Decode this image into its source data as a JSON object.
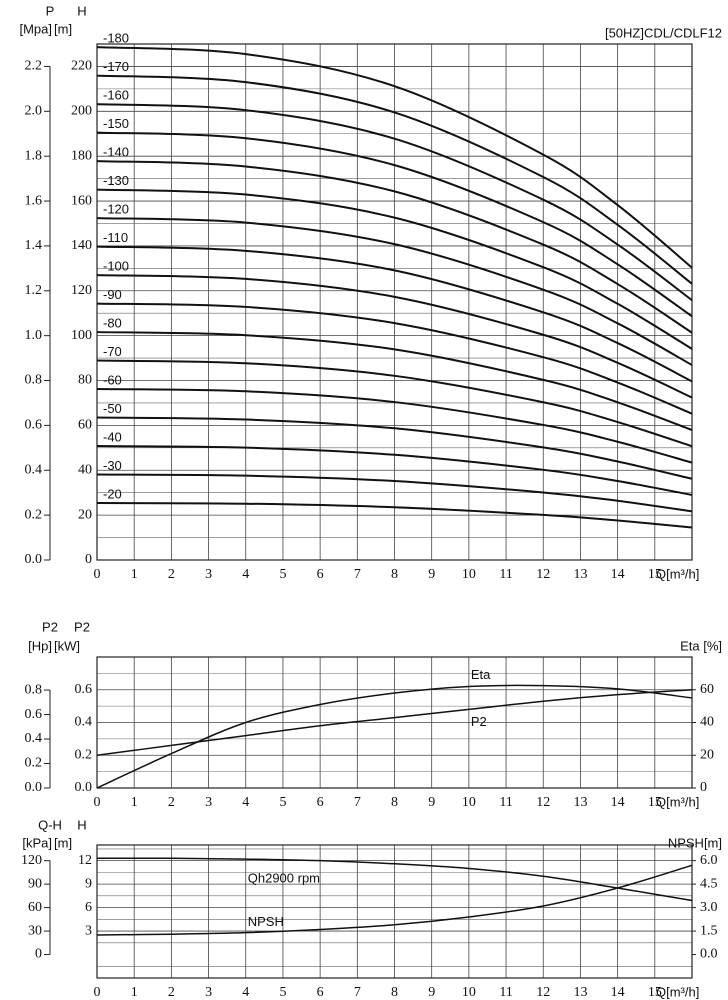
{
  "chart_data": [
    {
      "type": "line",
      "title": "[50HZ]CDL/CDLF12",
      "y_label": "H",
      "y_unit": "[m]",
      "y3_label": "P",
      "y3_unit": "[Mpa]",
      "x_label": "Q[m³/h]",
      "x": [
        0,
        4,
        8,
        12,
        14,
        16
      ],
      "xlim": [
        0,
        16
      ],
      "xticks": [
        0,
        1,
        2,
        3,
        4,
        5,
        6,
        7,
        8,
        9,
        10,
        11,
        12,
        13,
        14,
        15
      ],
      "ylim": [
        0,
        230
      ],
      "yticks": [
        0,
        20,
        40,
        60,
        80,
        100,
        120,
        140,
        160,
        180,
        200,
        220
      ],
      "y3lim": [
        0,
        2.3
      ],
      "y3ticks": [
        {
          "value": 0,
          "label": "0.0"
        },
        0.2,
        0.4,
        0.6,
        0.8,
        {
          "value": 1,
          "label": "1.0"
        },
        1.2,
        1.4,
        1.6,
        1.8,
        {
          "value": 2,
          "label": "2.0"
        },
        2.2
      ],
      "grid": true,
      "minor_grid": true,
      "series": [
        {
          "name": "-20",
          "color": "#111",
          "values": [
            25.4,
            25.1,
            23.5,
            20.1,
            17.6,
            14.5
          ]
        },
        {
          "name": "-30",
          "color": "#111",
          "values": [
            38.1,
            37.6,
            35.2,
            30.1,
            26.4,
            21.7
          ]
        },
        {
          "name": "-40",
          "color": "#111",
          "values": [
            50.8,
            50.1,
            46.9,
            40.2,
            35.2,
            29.0
          ]
        },
        {
          "name": "-50",
          "color": "#111",
          "values": [
            63.5,
            62.6,
            58.7,
            50.2,
            43.9,
            36.2
          ]
        },
        {
          "name": "-60",
          "color": "#111",
          "values": [
            76.2,
            75.2,
            70.4,
            60.2,
            52.7,
            43.4
          ]
        },
        {
          "name": "-70",
          "color": "#111",
          "values": [
            88.9,
            87.7,
            82.1,
            70.3,
            61.5,
            50.7
          ]
        },
        {
          "name": "-80",
          "color": "#111",
          "values": [
            101.6,
            100.2,
            93.9,
            80.3,
            70.3,
            57.9
          ]
        },
        {
          "name": "-90",
          "color": "#111",
          "values": [
            114.3,
            112.8,
            105.6,
            90.4,
            79.1,
            65.2
          ]
        },
        {
          "name": "-100",
          "color": "#111",
          "values": [
            127,
            125.3,
            117.3,
            100.4,
            87.9,
            72.4
          ]
        },
        {
          "name": "-110",
          "color": "#111",
          "values": [
            139.7,
            137.8,
            129.1,
            110.4,
            96.7,
            79.6
          ]
        },
        {
          "name": "-120",
          "color": "#111",
          "values": [
            152.4,
            150.4,
            140.8,
            120.5,
            105.5,
            86.9
          ]
        },
        {
          "name": "-130",
          "color": "#111",
          "values": [
            165.1,
            162.9,
            152.6,
            130.5,
            114.2,
            94.1
          ]
        },
        {
          "name": "-140",
          "color": "#111",
          "values": [
            177.8,
            175.4,
            164.3,
            140.6,
            123.0,
            101.3
          ]
        },
        {
          "name": "-150",
          "color": "#111",
          "values": [
            190.5,
            188.0,
            176.0,
            150.6,
            131.8,
            108.6
          ]
        },
        {
          "name": "-160",
          "color": "#111",
          "values": [
            203.2,
            200.5,
            187.8,
            160.6,
            140.6,
            115.8
          ]
        },
        {
          "name": "-170",
          "color": "#111",
          "values": [
            215.9,
            213.0,
            199.5,
            170.7,
            149.4,
            123.1
          ]
        },
        {
          "name": "-180",
          "color": "#111",
          "values": [
            228.6,
            225.5,
            211.2,
            180.7,
            158.2,
            130.3
          ]
        }
      ]
    },
    {
      "type": "line",
      "y_label": "P2",
      "y_unit": "[kW]",
      "y3_label": "P2",
      "y3_unit": "[Hp]",
      "y2_label": "Eta [%]",
      "x_label": "Q[m³/h]",
      "x": [
        0,
        2,
        4,
        6,
        8,
        10,
        12,
        14,
        16
      ],
      "xlim": [
        0,
        16
      ],
      "xticks": [
        0,
        1,
        2,
        3,
        4,
        5,
        6,
        7,
        8,
        9,
        10,
        11,
        12,
        13,
        14,
        15
      ],
      "ylim": [
        0,
        0.8
      ],
      "yticks": [
        {
          "value": 0,
          "label": "0.0"
        },
        0.2,
        0.4,
        0.6
      ],
      "y3lim": [
        0,
        1.07
      ],
      "y3ticks": [
        {
          "value": 0,
          "label": "0.0"
        },
        0.2,
        0.4,
        0.6,
        0.8
      ],
      "y2lim": [
        0,
        80
      ],
      "y2ticks": [
        0,
        20,
        40,
        60
      ],
      "grid": true,
      "minor_grid": true,
      "series": [
        {
          "name": "Eta",
          "color": "#111",
          "axis": "y2",
          "values": [
            0,
            21,
            40,
            51,
            58,
            62,
            62.5,
            60.5,
            55
          ]
        },
        {
          "name": "P2",
          "color": "#111",
          "values": [
            0.2,
            0.26,
            0.32,
            0.38,
            0.43,
            0.48,
            0.53,
            0.57,
            0.6
          ]
        }
      ]
    },
    {
      "type": "line",
      "y_label": "H",
      "y_unit": "[m]",
      "y3_label": "Q-H",
      "y3_unit": "[kPa]",
      "y2_label": "NPSH[m]",
      "x_label": "Q[m³/h]",
      "x": [
        0,
        2,
        4,
        6,
        8,
        10,
        12,
        14,
        16
      ],
      "xlim": [
        0,
        16
      ],
      "xticks": [
        0,
        1,
        2,
        3,
        4,
        5,
        6,
        7,
        8,
        9,
        10,
        11,
        12,
        13,
        14,
        15
      ],
      "ylim": [
        -3,
        14
      ],
      "yticks": [
        3,
        6,
        9,
        12
      ],
      "y3lim": [
        -30,
        140
      ],
      "y3ticks": [
        0,
        30,
        60,
        90,
        120
      ],
      "y2lim": [
        -1.5,
        7
      ],
      "y2ticks": [
        {
          "value": 0,
          "label": "0.0"
        },
        1.5,
        {
          "value": 3,
          "label": "3.0"
        },
        4.5,
        {
          "value": 6,
          "label": "6.0"
        }
      ],
      "grid": true,
      "minor_grid": true,
      "series": [
        {
          "name": "Qh2900 rpm",
          "color": "#111",
          "values": [
            12.3,
            12.3,
            12.2,
            12.0,
            11.6,
            11.0,
            10.0,
            8.5,
            6.9
          ]
        },
        {
          "name": "NPSH",
          "color": "#111",
          "axis": "y2",
          "values": [
            1.25,
            1.3,
            1.4,
            1.6,
            1.9,
            2.4,
            3.1,
            4.25,
            5.7
          ]
        }
      ]
    }
  ]
}
